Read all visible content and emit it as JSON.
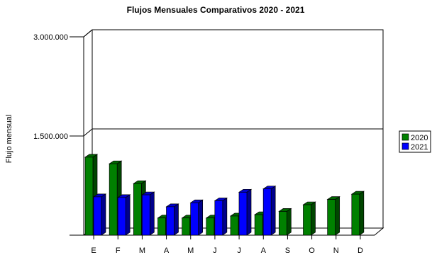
{
  "chart_data": {
    "type": "bar",
    "title": "Flujos Mensuales Comparativos 2020 - 2021",
    "xlabel": "",
    "ylabel": "Flujo mensual",
    "categories": [
      "E",
      "F",
      "M",
      "A",
      "M",
      "J",
      "J",
      "A",
      "S",
      "O",
      "N",
      "D"
    ],
    "series": [
      {
        "name": "2020",
        "color": "#008000",
        "values": [
          1180000,
          1080000,
          780000,
          260000,
          260000,
          260000,
          290000,
          310000,
          360000,
          460000,
          540000,
          620000
        ]
      },
      {
        "name": "2021",
        "color": "#0000ff",
        "values": [
          580000,
          570000,
          610000,
          430000,
          490000,
          520000,
          650000,
          700000,
          null,
          null,
          null,
          null
        ]
      }
    ],
    "ylim": [
      0,
      3000000
    ],
    "yticks": [
      {
        "value": 1500000,
        "label": "1.500.000"
      },
      {
        "value": 3000000,
        "label": "3.000.000"
      }
    ],
    "grid": true,
    "legend_position": "right",
    "style": "3d"
  }
}
